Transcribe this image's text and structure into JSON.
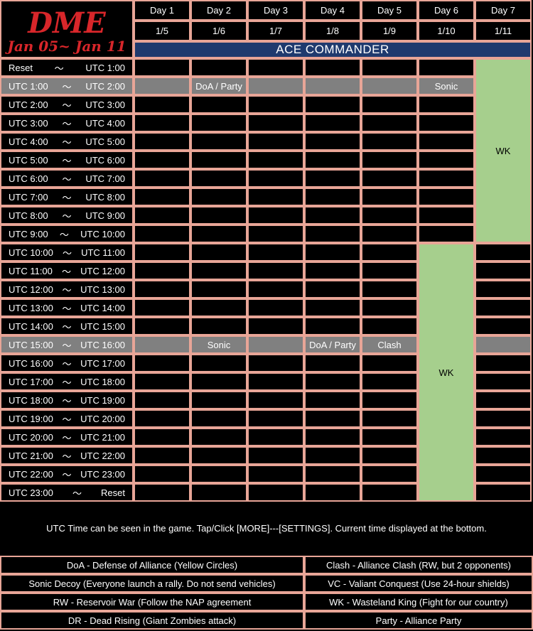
{
  "logo": {
    "title": "DME",
    "subtitle": "Jan 05~ Jan 11"
  },
  "days": [
    {
      "name": "Day 1",
      "date": "1/5"
    },
    {
      "name": "Day 2",
      "date": "1/6"
    },
    {
      "name": "Day 3",
      "date": "1/7"
    },
    {
      "name": "Day 4",
      "date": "1/8"
    },
    {
      "name": "Day 5",
      "date": "1/9"
    },
    {
      "name": "Day 6",
      "date": "1/10"
    },
    {
      "name": "Day 7",
      "date": "1/11"
    }
  ],
  "banner": "ACE COMMANDER",
  "separator": "〜",
  "rows": [
    {
      "from": "Reset",
      "to": "UTC 1:00"
    },
    {
      "from": "UTC 1:00",
      "to": "UTC 2:00"
    },
    {
      "from": "UTC 2:00",
      "to": "UTC 3:00"
    },
    {
      "from": "UTC 3:00",
      "to": "UTC 4:00"
    },
    {
      "from": "UTC 4:00",
      "to": "UTC 5:00"
    },
    {
      "from": "UTC 5:00",
      "to": "UTC 6:00"
    },
    {
      "from": "UTC 6:00",
      "to": "UTC 7:00"
    },
    {
      "from": "UTC 7:00",
      "to": "UTC 8:00"
    },
    {
      "from": "UTC 8:00",
      "to": "UTC 9:00"
    },
    {
      "from": "UTC 9:00",
      "to": "UTC 10:00"
    },
    {
      "from": "UTC 10:00",
      "to": "UTC 11:00"
    },
    {
      "from": "UTC 11:00",
      "to": "UTC 12:00"
    },
    {
      "from": "UTC 12:00",
      "to": "UTC 13:00"
    },
    {
      "from": "UTC 13:00",
      "to": "UTC 14:00"
    },
    {
      "from": "UTC 14:00",
      "to": "UTC 15:00"
    },
    {
      "from": "UTC 15:00",
      "to": "UTC 16:00"
    },
    {
      "from": "UTC 16:00",
      "to": "UTC 17:00"
    },
    {
      "from": "UTC 17:00",
      "to": "UTC 18:00"
    },
    {
      "from": "UTC 18:00",
      "to": "UTC 19:00"
    },
    {
      "from": "UTC 19:00",
      "to": "UTC 20:00"
    },
    {
      "from": "UTC 20:00",
      "to": "UTC 21:00"
    },
    {
      "from": "UTC 21:00",
      "to": "UTC 22:00"
    },
    {
      "from": "UTC 22:00",
      "to": "UTC 23:00"
    },
    {
      "from": "UTC 23:00",
      "to": "Reset"
    }
  ],
  "highlight_rows": [
    1,
    15
  ],
  "events": [
    {
      "day": 1,
      "row": 1,
      "label": "DoA / Party"
    },
    {
      "day": 5,
      "row": 1,
      "label": "Sonic"
    },
    {
      "day": 1,
      "row": 15,
      "label": "Sonic"
    },
    {
      "day": 3,
      "row": 15,
      "label": "DoA / Party"
    },
    {
      "day": 4,
      "row": 15,
      "label": "Clash"
    }
  ],
  "wk_blocks": [
    {
      "day": 6,
      "row_start": 0,
      "row_end": 9,
      "label": "WK"
    },
    {
      "day": 5,
      "row_start": 10,
      "row_end": 23,
      "label": "WK"
    }
  ],
  "note": "UTC Time can be seen in the game. Tap/Click [MORE]---[SETTINGS]. Current time displayed at the bottom.",
  "legend": [
    [
      "DoA - Defense of Alliance (Yellow Circles)",
      "Clash - Alliance Clash (RW, but 2 opponents)"
    ],
    [
      "Sonic Decoy (Everyone launch a rally. Do not send vehicles)",
      "VC - Valiant Conquest (Use 24-hour shields)"
    ],
    [
      "RW - Reservoir War (Follow the NAP agreement",
      "WK - Wasteland King (Fight for our country)"
    ],
    [
      "DR - Dead Rising (Giant Zombies attack)",
      "Party - Alliance Party"
    ]
  ],
  "colors": {
    "border": "#e8a597",
    "highlight_row": "#808080",
    "wk_block": "#a6cf8d",
    "banner": "#1f3a6e",
    "logo_text": "#d8262a"
  }
}
